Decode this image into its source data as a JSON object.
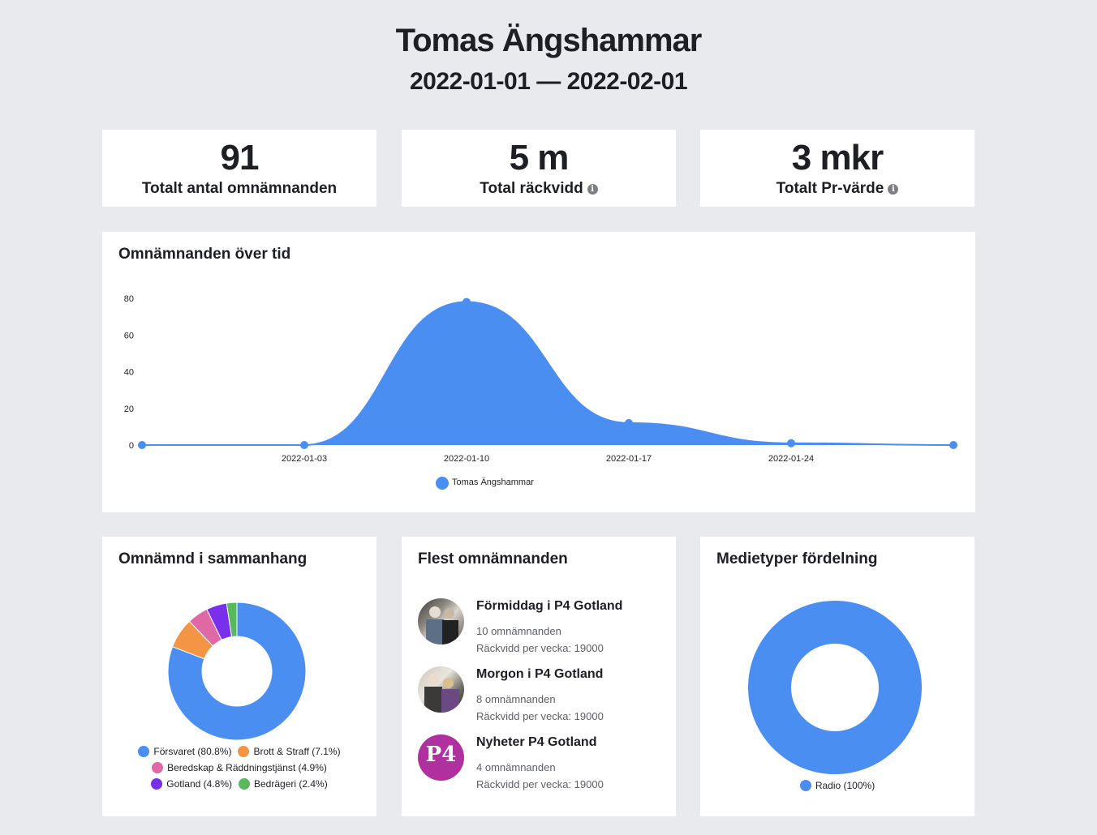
{
  "header": {
    "title": "Tomas Ängshammar",
    "date_range": "2022-01-01 — 2022-02-01"
  },
  "kpis": [
    {
      "value": "91",
      "label": "Totalt antal omnämnanden"
    },
    {
      "value": "5 m",
      "label": "Total räckvidd"
    },
    {
      "value": "3 mkr",
      "label": "Totalt Pr-värde"
    }
  ],
  "icons": {
    "info": "info-icon",
    "info_glyph": "i"
  },
  "timeline": {
    "title": "Omnämnanden över tid",
    "chart_data": {
      "type": "area",
      "title": "Omnämnanden över tid",
      "x": [
        "2021-12-27",
        "2022-01-03",
        "2022-01-10",
        "2022-01-17",
        "2022-01-24",
        "2022-01-31"
      ],
      "x_tick_labels": [
        "",
        "2022-01-03",
        "2022-01-10",
        "2022-01-17",
        "2022-01-24",
        ""
      ],
      "yticks": [
        0,
        20,
        40,
        60,
        80
      ],
      "ylim": [
        0,
        80
      ],
      "series": [
        {
          "name": "Tomas Ängshammar",
          "values": [
            0,
            0,
            78,
            12,
            1,
            0
          ],
          "color": "#4a8ef1"
        }
      ],
      "legend": "bottom"
    }
  },
  "context": {
    "title": "Omnämnd i sammanhang",
    "chart_data": {
      "type": "pie",
      "donut": true,
      "categories": [
        "Försvaret (80.8%)",
        "Brott & Straff (7.1%)",
        "Beredskap & Räddningstjänst (4.9%)",
        "Gotland (4.8%)",
        "Bedrägeri (2.4%)"
      ],
      "values": [
        80.8,
        7.1,
        4.9,
        4.8,
        2.4
      ],
      "colors": [
        "#4a8ef1",
        "#f39544",
        "#df69a5",
        "#7a2fea",
        "#58b85c"
      ]
    }
  },
  "top_media": {
    "title": "Flest omnämnanden",
    "items": [
      {
        "name": "Förmiddag i P4 Gotland",
        "count": "10 omnämnanden",
        "reach": "Räckvidd per vecka: 19000"
      },
      {
        "name": "Morgon i P4 Gotland",
        "count": "8 omnämnanden",
        "reach": "Räckvidd per vecka: 19000"
      },
      {
        "name": "Nyheter P4 Gotland",
        "count": "4 omnämnanden",
        "reach": "Räckvidd per vecka: 19000"
      }
    ],
    "logo_text": "P4"
  },
  "media_types": {
    "title": "Medietyper fördelning",
    "chart_data": {
      "type": "pie",
      "donut": true,
      "categories": [
        "Radio (100%)"
      ],
      "values": [
        100
      ],
      "colors": [
        "#4a8ef1"
      ]
    }
  }
}
